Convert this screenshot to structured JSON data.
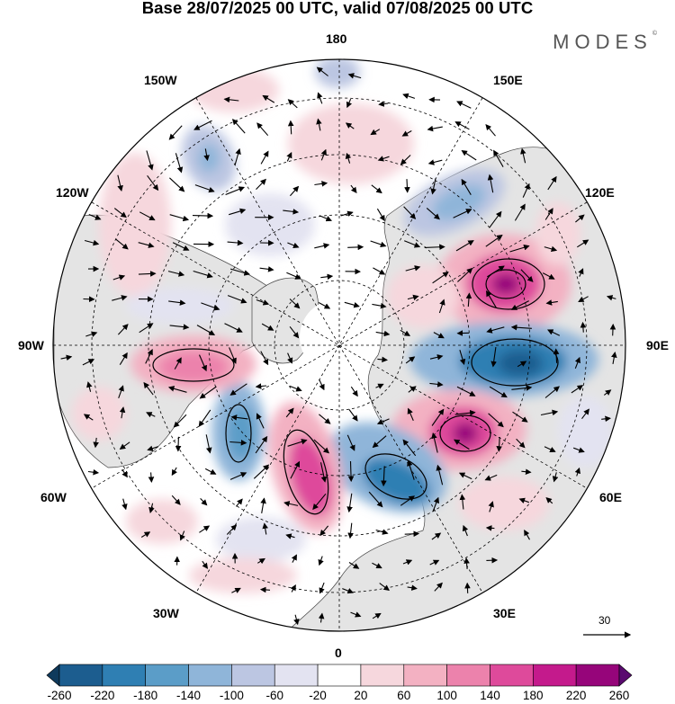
{
  "title": "Base 28/07/2025 00 UTC, valid 07/08/2025 00 UTC",
  "brand": "MODES",
  "brand_mark": "©",
  "longitude_labels": {
    "lon_180": "180",
    "lon_150w": "150W",
    "lon_150e": "150E",
    "lon_120w": "120W",
    "lon_120e": "120E",
    "lon_90w": "90W",
    "lon_90e": "90E",
    "lon_60w": "60W",
    "lon_60e": "60E",
    "lon_30w": "30W",
    "lon_30e": "30E",
    "lon_0": "0"
  },
  "wind_reference": "30",
  "colorbar": {
    "labels": [
      "-260",
      "-220",
      "-180",
      "-140",
      "-100",
      "-60",
      "-20",
      "20",
      "60",
      "100",
      "140",
      "180",
      "220",
      "260"
    ],
    "colors": [
      "#0f3a5c",
      "#1c5d8f",
      "#2f7fb3",
      "#5b9dc8",
      "#8fb5d9",
      "#bcc6e2",
      "#e3e3f1",
      "#ffffff",
      "#f6d7dd",
      "#f3b1c2",
      "#ec82ac",
      "#de4a9b",
      "#c41a8c",
      "#96057a",
      "#5a0a6f"
    ]
  },
  "map_features": {
    "anomaly_centers": [
      {
        "name": "east-siberia-high",
        "sign": "positive",
        "peak": 260
      },
      {
        "name": "central-asia-low",
        "sign": "negative",
        "peak": -220
      },
      {
        "name": "western-siberia-high",
        "sign": "positive",
        "peak": 220
      },
      {
        "name": "scandinavia-low",
        "sign": "negative",
        "peak": -220
      },
      {
        "name": "north-atlantic-high",
        "sign": "positive",
        "peak": 180
      },
      {
        "name": "labrador-low",
        "sign": "negative",
        "peak": -140
      },
      {
        "name": "hudson-bay-high",
        "sign": "positive",
        "peak": 140
      },
      {
        "name": "east-asia-low",
        "sign": "negative",
        "peak": -140
      },
      {
        "name": "alaska-low",
        "sign": "negative",
        "peak": -100
      }
    ]
  }
}
